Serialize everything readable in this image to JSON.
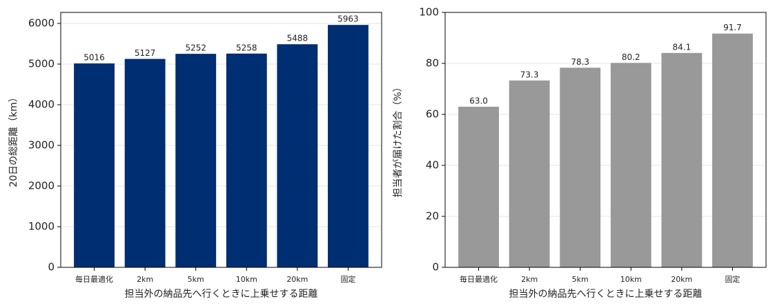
{
  "chart_data": [
    {
      "type": "bar",
      "xlabel": "担当外の納品先へ行くときに上乗せする距離",
      "ylabel": "20日の総距離（km）",
      "categories": [
        "毎日最適化",
        "2km",
        "5km",
        "10km",
        "20km",
        "固定"
      ],
      "values": [
        5016,
        5127,
        5252,
        5258,
        5488,
        5963
      ],
      "color": "#002e72",
      "ylim": [
        0,
        6271
      ],
      "yticks": [
        0,
        1000,
        2000,
        3000,
        4000,
        5000,
        6000
      ],
      "grid": true
    },
    {
      "type": "bar",
      "xlabel": "担当外の納品先へ行くときに上乗せする距離",
      "ylabel": "担当者が届けた割合（%）",
      "categories": [
        "毎日最適化",
        "2km",
        "5km",
        "10km",
        "20km",
        "固定"
      ],
      "values": [
        63.0,
        73.3,
        78.3,
        80.2,
        84.1,
        91.7
      ],
      "value_labels": [
        "63.0",
        "73.3",
        "78.3",
        "80.2",
        "84.1",
        "91.7"
      ],
      "color": "#999999",
      "ylim": [
        0,
        100
      ],
      "yticks": [
        0,
        20,
        40,
        60,
        80,
        100
      ],
      "grid": true
    }
  ]
}
